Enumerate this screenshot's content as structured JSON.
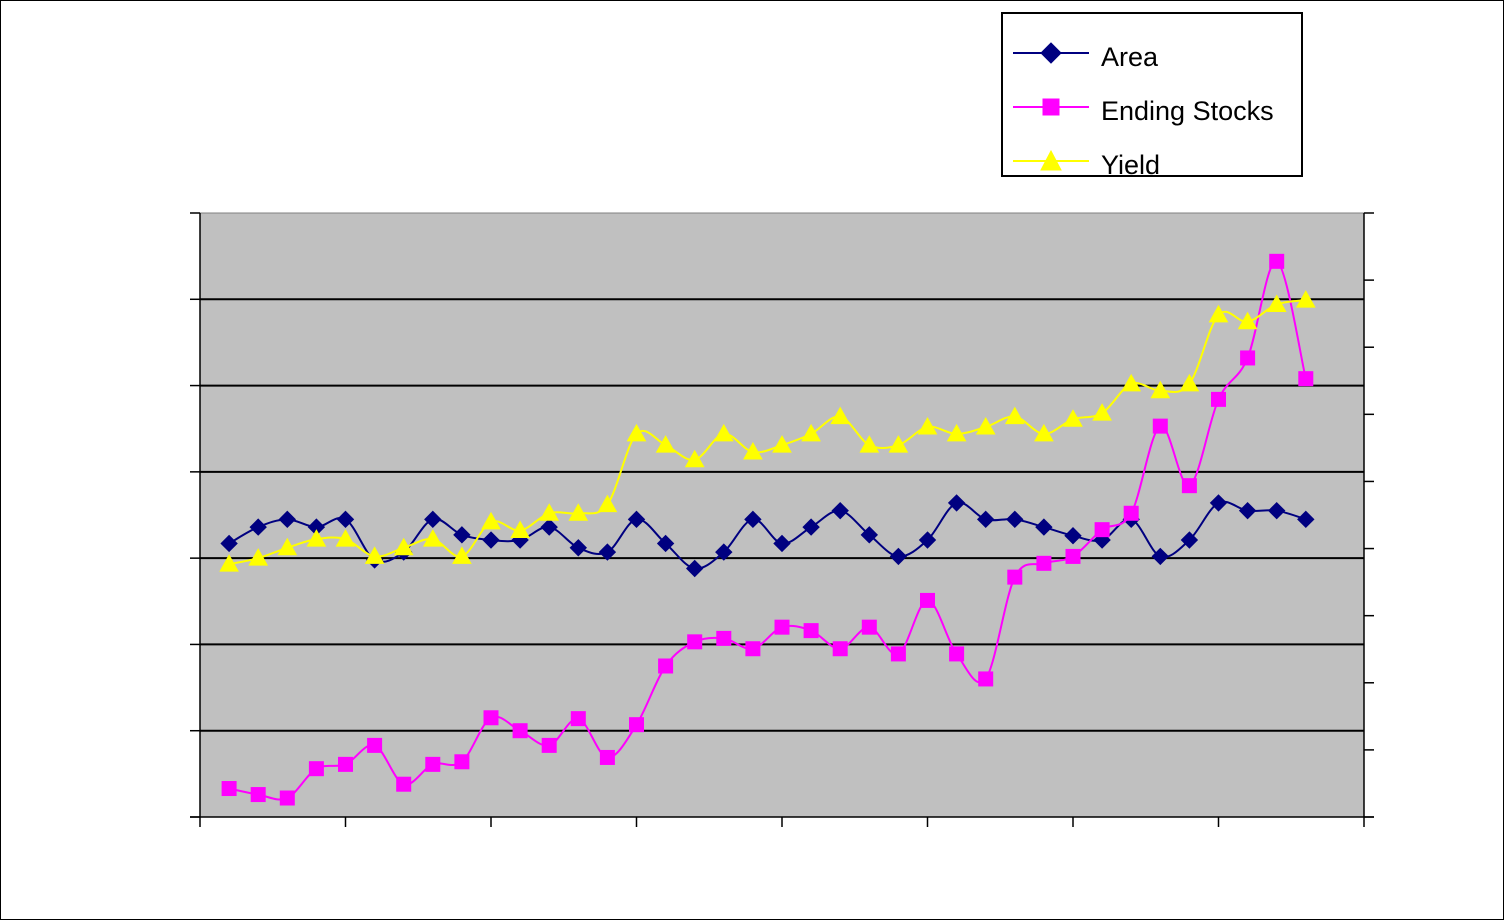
{
  "chart_data": {
    "type": "line",
    "title": "",
    "xlabel": "",
    "ylabel": "",
    "grid": true,
    "legend_position": "top-right",
    "plot_background": "#c0c0c0",
    "x": [
      1,
      2,
      3,
      4,
      5,
      6,
      7,
      8,
      9,
      10,
      11,
      12,
      13,
      14,
      15,
      16,
      17,
      18,
      19,
      20,
      21,
      22,
      23,
      24,
      25,
      26,
      27,
      28,
      29,
      30,
      31,
      32,
      33,
      34,
      35,
      36,
      37,
      38
    ],
    "series": [
      {
        "name": "Area",
        "color": "#000080",
        "marker": "diamond",
        "values": [
          3.17,
          3.36,
          3.45,
          3.36,
          3.45,
          2.98,
          3.07,
          3.45,
          3.27,
          3.21,
          3.21,
          3.36,
          3.12,
          3.07,
          3.45,
          3.17,
          2.88,
          3.07,
          3.45,
          3.17,
          3.36,
          3.55,
          3.27,
          3.02,
          3.21,
          3.64,
          3.45,
          3.45,
          3.36,
          3.26,
          3.21,
          3.45,
          3.02,
          3.21,
          3.64,
          3.55,
          3.55,
          3.45
        ]
      },
      {
        "name": "Ending Stocks",
        "color": "#ff00ff",
        "marker": "square",
        "values": [
          0.33,
          0.26,
          0.22,
          0.56,
          0.61,
          0.83,
          0.38,
          0.61,
          0.64,
          1.15,
          1.0,
          0.83,
          1.14,
          0.69,
          1.07,
          1.75,
          2.03,
          2.07,
          1.95,
          2.2,
          2.16,
          1.95,
          2.2,
          1.89,
          2.51,
          1.89,
          1.6,
          2.78,
          2.94,
          3.02,
          3.33,
          3.52,
          4.53,
          3.84,
          4.84,
          5.32,
          6.44,
          5.08
        ]
      },
      {
        "name": "Yield",
        "color": "#ffff00",
        "marker": "triangle",
        "values": [
          2.93,
          3.0,
          3.12,
          3.22,
          3.22,
          3.02,
          3.12,
          3.22,
          3.02,
          3.42,
          3.32,
          3.52,
          3.52,
          3.62,
          4.44,
          4.31,
          4.14,
          4.44,
          4.23,
          4.31,
          4.44,
          4.64,
          4.31,
          4.31,
          4.52,
          4.44,
          4.52,
          4.64,
          4.44,
          4.61,
          4.68,
          5.02,
          4.94,
          5.02,
          5.82,
          5.74,
          5.94,
          5.99
        ]
      }
    ],
    "ylim": [
      0,
      7
    ],
    "xlim": [
      0,
      40
    ],
    "y_major_step": 1,
    "x_major_step": 5,
    "secondary_axis_ticks": 9
  }
}
